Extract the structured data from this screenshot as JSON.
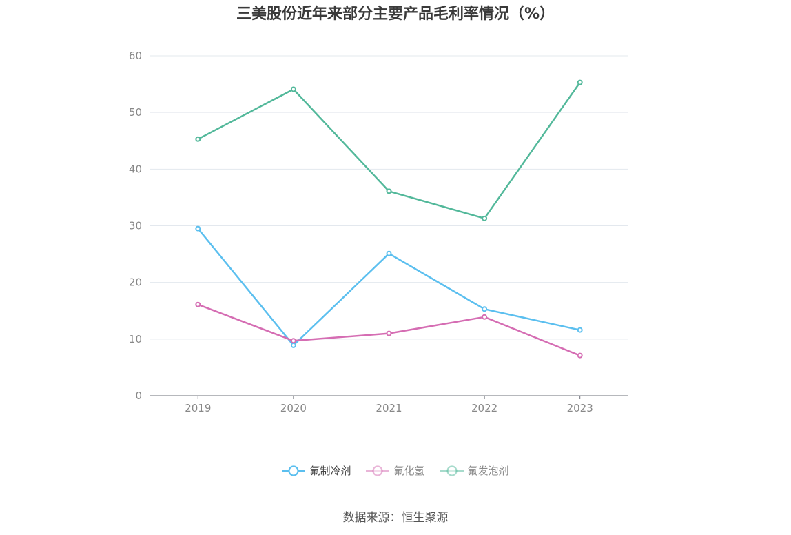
{
  "chart_data": {
    "type": "line",
    "title": "三美股份近年来部分主要产品毛利率情况（%）",
    "categories": [
      "2019",
      "2020",
      "2021",
      "2022",
      "2023"
    ],
    "ylim": [
      0,
      60
    ],
    "yticks": [
      "0",
      "10",
      "20",
      "30",
      "40",
      "50",
      "60"
    ],
    "grid": true,
    "legend_position": "bottom",
    "series": [
      {
        "name": "氟制冷剂",
        "color": "#5bbfef",
        "values": [
          29.5,
          8.9,
          25.1,
          15.3,
          11.6
        ]
      },
      {
        "name": "氟化氢",
        "color": "#d56db3",
        "values": [
          16.1,
          9.7,
          11.0,
          13.9,
          7.1
        ]
      },
      {
        "name": "氟发泡剂",
        "color": "#52b89a",
        "values": [
          45.3,
          54.1,
          36.1,
          31.3,
          55.3
        ]
      }
    ]
  },
  "source": "数据来源：恒生聚源"
}
